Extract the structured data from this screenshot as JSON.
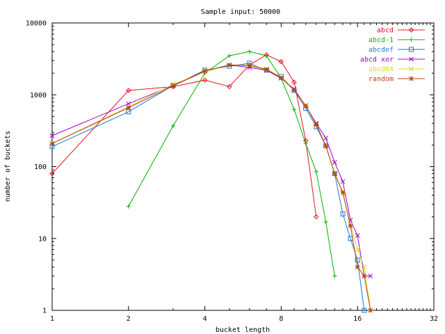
{
  "chart_data": {
    "type": "line",
    "title": "Sample input: 50000",
    "xlabel": "bucket length",
    "ylabel": "number of buckets",
    "x_scale": "log2",
    "y_scale": "log10",
    "xlim": [
      1,
      32
    ],
    "ylim": [
      1,
      10000
    ],
    "x_ticks": [
      "1",
      "2",
      "4",
      "8",
      "16",
      "32"
    ],
    "y_ticks": [
      "1",
      "10",
      "100",
      "1000",
      "10000"
    ],
    "grid": false,
    "legend_position": "top-right",
    "series": [
      {
        "name": "abcd",
        "color": "#e8101f",
        "marker": "diamond",
        "x": [
          1,
          2,
          3,
          4,
          5,
          6,
          7,
          8,
          9,
          10,
          11
        ],
        "y": [
          80,
          1150,
          1300,
          1600,
          1300,
          2600,
          3600,
          2900,
          1500,
          230,
          20
        ]
      },
      {
        "name": "abcd-1",
        "color": "#00b000",
        "marker": "plus",
        "x": [
          2,
          3,
          4,
          5,
          6,
          7,
          8,
          9,
          10,
          11,
          12,
          13
        ],
        "y": [
          28,
          370,
          2000,
          3500,
          4000,
          3500,
          1700,
          620,
          210,
          85,
          17,
          3
        ]
      },
      {
        "name": "abcdef",
        "color": "#1a78d8",
        "marker": "square",
        "x": [
          1,
          2,
          3,
          4,
          5,
          6,
          7,
          8,
          9,
          10,
          11,
          12,
          13,
          14,
          15,
          16,
          17
        ],
        "y": [
          190,
          580,
          1350,
          2200,
          2500,
          2750,
          2200,
          1800,
          1150,
          650,
          360,
          195,
          80,
          22,
          10,
          5,
          1
        ]
      },
      {
        "name": "abcd xor",
        "color": "#a000d0",
        "marker": "x",
        "x": [
          1,
          2,
          3,
          4,
          5,
          6,
          7,
          8,
          9,
          10,
          11,
          12,
          13,
          14,
          15,
          16,
          17,
          18
        ],
        "y": [
          270,
          750,
          1350,
          2100,
          2600,
          2400,
          2200,
          1700,
          1200,
          700,
          400,
          250,
          115,
          62,
          18,
          11,
          3,
          3
        ]
      },
      {
        "name": "abcd64",
        "color": "#d8d820",
        "marker": "x",
        "x": [
          1,
          2,
          3,
          4,
          5,
          6,
          7,
          8,
          9,
          10,
          11,
          12,
          13,
          14,
          15,
          16,
          17,
          18
        ],
        "y": [
          210,
          680,
          1400,
          2100,
          2600,
          2600,
          2300,
          1750,
          1150,
          720,
          380,
          195,
          82,
          42,
          16,
          7,
          4,
          1
        ]
      },
      {
        "name": "random",
        "color": "#b8400a",
        "marker": "star",
        "x": [
          1,
          2,
          3,
          4,
          5,
          6,
          7,
          8,
          9,
          10,
          11,
          12,
          13,
          14,
          15,
          16,
          17,
          18
        ],
        "y": [
          210,
          660,
          1330,
          2150,
          2600,
          2550,
          2250,
          1720,
          1170,
          700,
          390,
          195,
          80,
          44,
          15,
          4,
          3,
          1
        ]
      }
    ]
  }
}
